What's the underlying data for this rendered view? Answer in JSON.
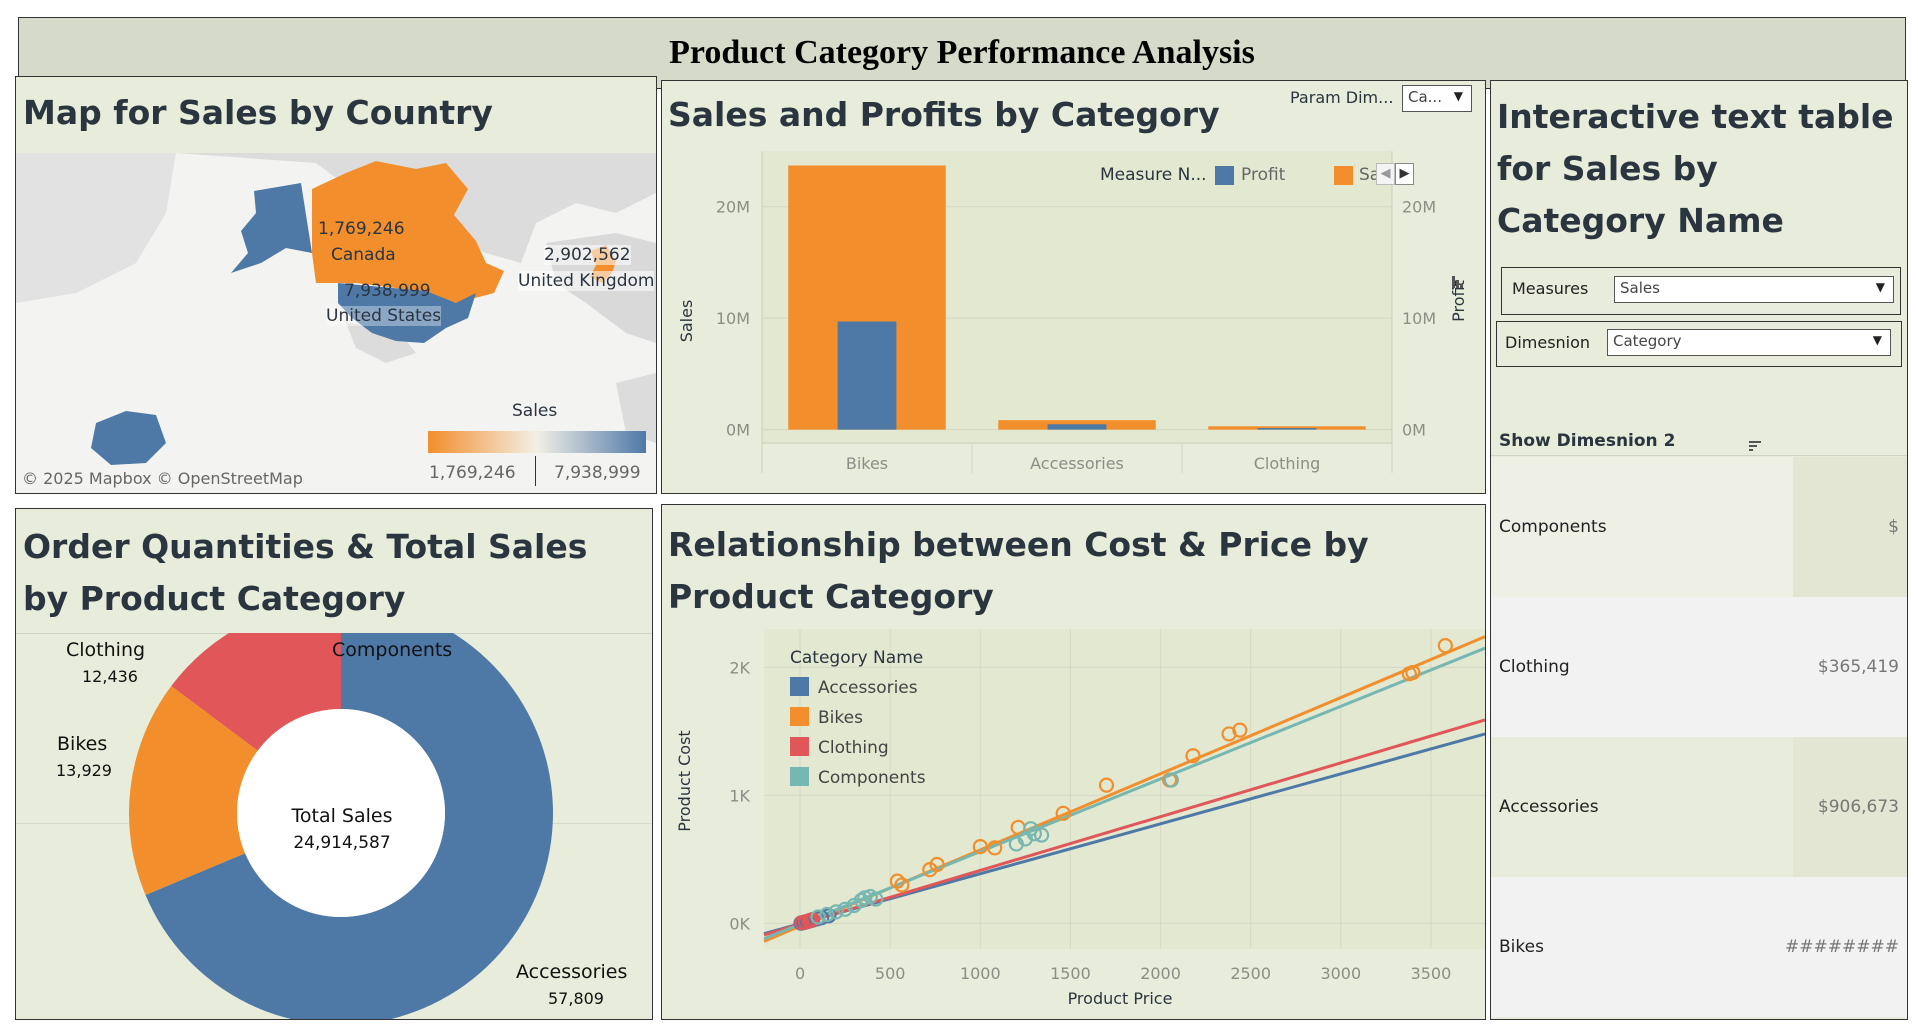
{
  "header": {
    "title": "Product Category Performance Analysis"
  },
  "map_panel": {
    "title": "Map for Sales by Country",
    "countries": [
      {
        "name": "Canada",
        "value": "1,769,246"
      },
      {
        "name": "United States",
        "value": "7,938,999"
      },
      {
        "name": "United Kingdom",
        "value": "2,902,562"
      }
    ],
    "legend_title": "Sales",
    "legend_min": "1,769,246",
    "legend_max": "7,938,999",
    "credits": "© 2025 Mapbox  © OpenStreetMap",
    "colors": {
      "low": "#f28e2b",
      "high": "#4e79a7",
      "land": "#d9d9d9",
      "water": "#f5f5f5"
    }
  },
  "bar_panel": {
    "title": "Sales and Profits by Category",
    "param_label": "Param Dim...",
    "param_value": "Ca...",
    "legend_title": "Measure N...",
    "legend_profit": "Profit",
    "legend_sales": "Sa",
    "ylabel_left": "Sales",
    "ylabel_right": "Profit"
  },
  "table_panel": {
    "title": "Interactive text table for Sales by Category Name",
    "measures_label": "Measures",
    "measures_value": "Sales",
    "dimension_label": "Dimesnion",
    "dimension_value": "Category",
    "show_label": "Show Dimesnion 2",
    "rows": [
      {
        "name": "Components",
        "value": "$"
      },
      {
        "name": "Clothing",
        "value": "$365,419"
      },
      {
        "name": "Accessories",
        "value": "$906,673"
      },
      {
        "name": "Bikes",
        "value": "########"
      }
    ]
  },
  "donut_panel": {
    "title": "Order Quantities & Total Sales by Product Category",
    "center_label": "Total Sales",
    "center_value": "24,914,587",
    "slices": [
      {
        "name": "Components",
        "value": ""
      },
      {
        "name": "Accessories",
        "value": "57,809"
      },
      {
        "name": "Bikes",
        "value": "13,929"
      },
      {
        "name": "Clothing",
        "value": "12,436"
      }
    ]
  },
  "scatter_panel": {
    "title": "Relationship between Cost & Price by Product Category",
    "legend_title": "Category Name"
  },
  "chart_data": [
    {
      "type": "bar",
      "title": "Sales and Profits by Category",
      "categories": [
        "Bikes",
        "Accessories",
        "Clothing"
      ],
      "series": [
        {
          "name": "Sales",
          "values": [
            23700000,
            850000,
            300000
          ],
          "color": "#f28e2b"
        },
        {
          "name": "Profit",
          "values": [
            9700000,
            480000,
            140000
          ],
          "color": "#4e79a7"
        }
      ],
      "ylabel": "Sales",
      "y2label": "Profit",
      "ylim": [
        -1200000,
        25000000
      ],
      "yticks": [
        0,
        10000000,
        20000000
      ],
      "ytick_labels": [
        "0M",
        "10M",
        "20M"
      ],
      "grid": true,
      "legend": "top-right"
    },
    {
      "type": "pie",
      "title": "Order Quantities & Total Sales by Product Category",
      "categories": [
        "Components",
        "Accessories",
        "Bikes",
        "Clothing"
      ],
      "values": [
        0,
        57809,
        13929,
        12436
      ],
      "colors": [
        "#4e79a7",
        "#4e79a7",
        "#f28e2b",
        "#e15759"
      ],
      "center_label": "Total Sales",
      "center_value": "24,914,587"
    },
    {
      "type": "scatter",
      "title": "Relationship between Cost & Price by Product Category",
      "xlabel": "Product Price",
      "ylabel": "Product Cost",
      "xlim": [
        -200,
        3800
      ],
      "ylim": [
        -200,
        2300
      ],
      "xticks": [
        0,
        500,
        1000,
        1500,
        2000,
        2500,
        3000,
        3500
      ],
      "yticks": [
        0,
        1000,
        2000
      ],
      "ytick_labels": [
        "0K",
        "1K",
        "2K"
      ],
      "legend": "top-left",
      "series": [
        {
          "name": "Accessories",
          "color": "#4e79a7",
          "points": [
            [
              5,
              2
            ],
            [
              9,
              3
            ],
            [
              20,
              7
            ],
            [
              25,
              9
            ],
            [
              35,
              13
            ],
            [
              40,
              15
            ],
            [
              55,
              20
            ],
            [
              70,
              26
            ],
            [
              95,
              35
            ],
            [
              120,
              45
            ],
            [
              160,
              60
            ],
            [
              30,
              11
            ]
          ],
          "trend": [
            [
              -200,
              -80
            ],
            [
              3800,
              1480
            ]
          ]
        },
        {
          "name": "Bikes",
          "color": "#f28e2b",
          "points": [
            [
              540,
              330
            ],
            [
              565,
              300
            ],
            [
              760,
              460
            ],
            [
              720,
              420
            ],
            [
              1000,
              600
            ],
            [
              1080,
              590
            ],
            [
              1210,
              750
            ],
            [
              1460,
              860
            ],
            [
              1700,
              1080
            ],
            [
              2050,
              1120
            ],
            [
              2180,
              1310
            ],
            [
              2380,
              1480
            ],
            [
              2440,
              1510
            ],
            [
              3380,
              1950
            ],
            [
              3400,
              1960
            ],
            [
              3580,
              2170
            ]
          ],
          "trend": [
            [
              -200,
              -140
            ],
            [
              3800,
              2240
            ]
          ]
        },
        {
          "name": "Clothing",
          "color": "#e15759",
          "points": [
            [
              10,
              5
            ],
            [
              30,
              12
            ],
            [
              50,
              20
            ],
            [
              60,
              25
            ],
            [
              55,
              22
            ],
            [
              70,
              30
            ]
          ],
          "trend": [
            [
              -200,
              -90
            ],
            [
              3800,
              1590
            ]
          ]
        },
        {
          "name": "Components",
          "color": "#76b7b2",
          "points": [
            [
              100,
              50
            ],
            [
              150,
              70
            ],
            [
              200,
              90
            ],
            [
              250,
              110
            ],
            [
              300,
              140
            ],
            [
              340,
              180
            ],
            [
              360,
              200
            ],
            [
              390,
              210
            ],
            [
              420,
              190
            ],
            [
              1200,
              620
            ],
            [
              1250,
              660
            ],
            [
              1300,
              700
            ],
            [
              1340,
              690
            ],
            [
              1280,
              740
            ],
            [
              2060,
              1120
            ]
          ],
          "trend": [
            [
              -200,
              -120
            ],
            [
              3800,
              2150
            ]
          ]
        }
      ]
    }
  ]
}
